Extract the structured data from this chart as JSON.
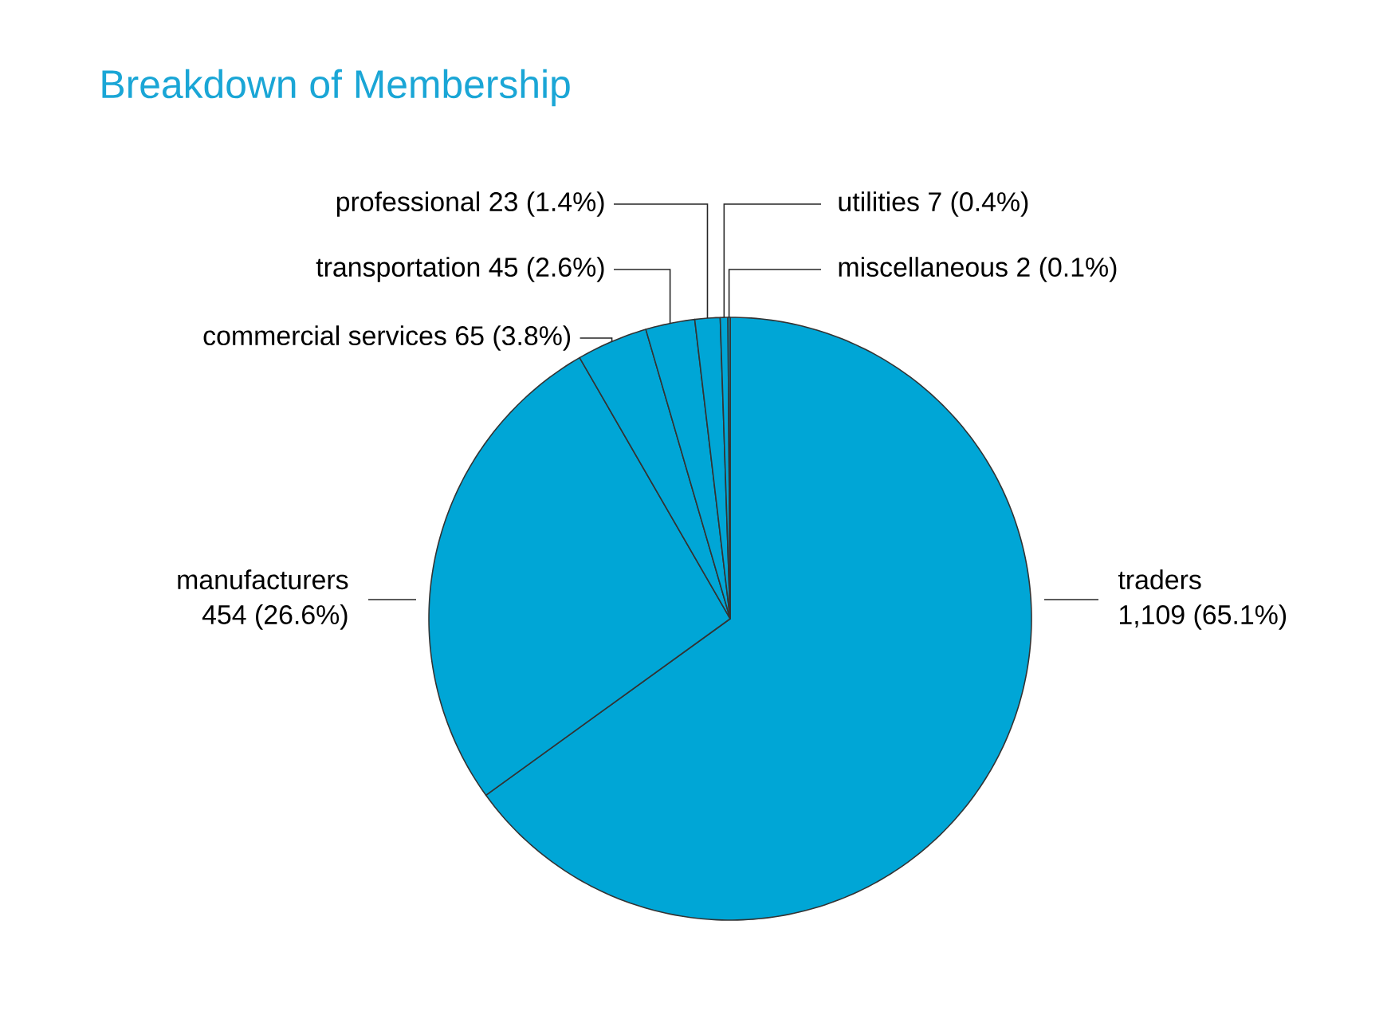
{
  "chart_data": {
    "type": "pie",
    "title": "Breakdown of Membership",
    "categories": [
      "traders",
      "manufacturers",
      "commercial services",
      "transportation",
      "professional",
      "utilities",
      "miscellaneous"
    ],
    "values": [
      1109,
      454,
      65,
      45,
      23,
      7,
      2
    ],
    "value_labels": [
      "1,109 (65.1%)",
      "454 (26.6%)",
      "65 (3.8%)",
      "45 (2.6%)",
      "23 (1.4%)",
      "7 (0.4%)",
      "2 (0.1%)"
    ],
    "colors": [
      "#00a6d6",
      "#00a6d6",
      "#00a6d6",
      "#00a6d6",
      "#00a6d6",
      "#00a6d6",
      "#00a6d6"
    ]
  }
}
